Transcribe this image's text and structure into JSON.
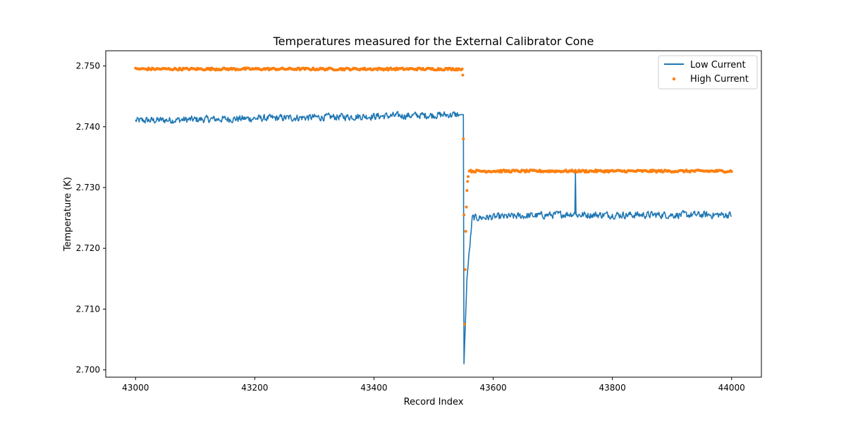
{
  "chart_data": {
    "type": "line",
    "title": "Temperatures measured for the External Calibrator Cone",
    "xlabel": "Record Index",
    "ylabel": "Temperature (K)",
    "xlim": [
      42950,
      44050
    ],
    "ylim": [
      2.6988,
      2.7525
    ],
    "xticks": [
      43000,
      43200,
      43400,
      43600,
      43800,
      44000
    ],
    "yticks": [
      2.7,
      2.71,
      2.72,
      2.73,
      2.74,
      2.75
    ],
    "ytick_labels": [
      "2.700",
      "2.710",
      "2.720",
      "2.730",
      "2.740",
      "2.750"
    ],
    "grid": false,
    "legend_position": "top-right",
    "series": [
      {
        "name": "Low Current",
        "kind": "line",
        "color": "#1f77b4",
        "x": [
          43000,
          43550,
          43551,
          43556,
          43565,
          43700,
          43737,
          43738,
          43739,
          43800,
          44000
        ],
        "y": [
          2.741,
          2.742,
          2.701,
          2.715,
          2.725,
          2.7255,
          2.7257,
          2.7325,
          2.7255,
          2.7255,
          2.7255
        ],
        "noise": 0.0008
      },
      {
        "name": "High Current",
        "kind": "scatter",
        "color": "#ff7f0e",
        "x": [
          43000,
          43548,
          43549,
          43550,
          43551,
          43552,
          43553,
          43554,
          43555,
          43556,
          43557,
          43558,
          43560,
          44000
        ],
        "y": [
          2.7495,
          2.7495,
          2.7485,
          2.738,
          2.7255,
          2.7075,
          2.7165,
          2.7228,
          2.7268,
          2.7295,
          2.731,
          2.7318,
          2.7327,
          2.7327
        ],
        "noise": 0.00018
      }
    ]
  }
}
